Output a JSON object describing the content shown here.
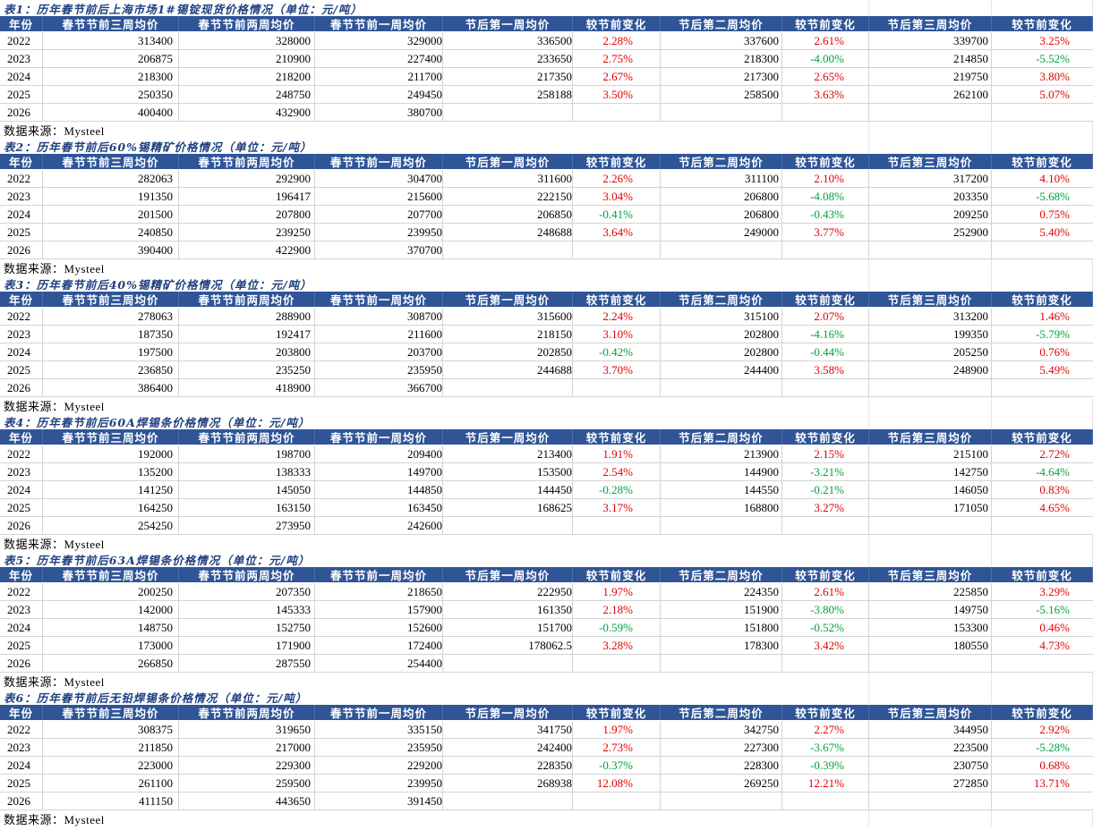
{
  "colors": {
    "header_bg": "#2f5597",
    "title_text": "#1f3f80",
    "increase": "#e00000",
    "decrease": "#00a040"
  },
  "headers": [
    "年份",
    "春节节前三周均价",
    "春节节前两周均价",
    "春节节前一周均价",
    "节后第一周均价",
    "较节前变化",
    "节后第二周均价",
    "较节前变化",
    "节后第三周均价",
    "较节前变化"
  ],
  "source_label": "数据来源：Mysteel",
  "tables": [
    {
      "title": "表1：历年春节前后上海市场1#锡锭现货价格情况（单位：元/吨）",
      "rows": [
        [
          "2022",
          "313400",
          "328000",
          "329000",
          "336500",
          "2.28%",
          "337600",
          "2.61%",
          "339700",
          "3.25%"
        ],
        [
          "2023",
          "206875",
          "210900",
          "227400",
          "233650",
          "2.75%",
          "218300",
          "-4.00%",
          "214850",
          "-5.52%"
        ],
        [
          "2024",
          "218300",
          "218200",
          "211700",
          "217350",
          "2.67%",
          "217300",
          "2.65%",
          "219750",
          "3.80%"
        ],
        [
          "2025",
          "250350",
          "248750",
          "249450",
          "258188",
          "3.50%",
          "258500",
          "3.63%",
          "262100",
          "5.07%"
        ],
        [
          "2026",
          "400400",
          "432900",
          "380700",
          "",
          "",
          "",
          "",
          "",
          ""
        ]
      ]
    },
    {
      "title": "表2：历年春节前后60%锡精矿价格情况（单位：元/吨）",
      "rows": [
        [
          "2022",
          "282063",
          "292900",
          "304700",
          "311600",
          "2.26%",
          "311100",
          "2.10%",
          "317200",
          "4.10%"
        ],
        [
          "2023",
          "191350",
          "196417",
          "215600",
          "222150",
          "3.04%",
          "206800",
          "-4.08%",
          "203350",
          "-5.68%"
        ],
        [
          "2024",
          "201500",
          "207800",
          "207700",
          "206850",
          "-0.41%",
          "206800",
          "-0.43%",
          "209250",
          "0.75%"
        ],
        [
          "2025",
          "240850",
          "239250",
          "239950",
          "248688",
          "3.64%",
          "249000",
          "3.77%",
          "252900",
          "5.40%"
        ],
        [
          "2026",
          "390400",
          "422900",
          "370700",
          "",
          "",
          "",
          "",
          "",
          ""
        ]
      ]
    },
    {
      "title": "表3：历年春节前后40%锡精矿价格情况（单位：元/吨）",
      "rows": [
        [
          "2022",
          "278063",
          "288900",
          "308700",
          "315600",
          "2.24%",
          "315100",
          "2.07%",
          "313200",
          "1.46%"
        ],
        [
          "2023",
          "187350",
          "192417",
          "211600",
          "218150",
          "3.10%",
          "202800",
          "-4.16%",
          "199350",
          "-5.79%"
        ],
        [
          "2024",
          "197500",
          "203800",
          "203700",
          "202850",
          "-0.42%",
          "202800",
          "-0.44%",
          "205250",
          "0.76%"
        ],
        [
          "2025",
          "236850",
          "235250",
          "235950",
          "244688",
          "3.70%",
          "244400",
          "3.58%",
          "248900",
          "5.49%"
        ],
        [
          "2026",
          "386400",
          "418900",
          "366700",
          "",
          "",
          "",
          "",
          "",
          ""
        ]
      ]
    },
    {
      "title": "表4：历年春节前后60A焊锡条价格情况（单位：元/吨）",
      "rows": [
        [
          "2022",
          "192000",
          "198700",
          "209400",
          "213400",
          "1.91%",
          "213900",
          "2.15%",
          "215100",
          "2.72%"
        ],
        [
          "2023",
          "135200",
          "138333",
          "149700",
          "153500",
          "2.54%",
          "144900",
          "-3.21%",
          "142750",
          "-4.64%"
        ],
        [
          "2024",
          "141250",
          "145050",
          "144850",
          "144450",
          "-0.28%",
          "144550",
          "-0.21%",
          "146050",
          "0.83%"
        ],
        [
          "2025",
          "164250",
          "163150",
          "163450",
          "168625",
          "3.17%",
          "168800",
          "3.27%",
          "171050",
          "4.65%"
        ],
        [
          "2026",
          "254250",
          "273950",
          "242600",
          "",
          "",
          "",
          "",
          "",
          ""
        ]
      ]
    },
    {
      "title": "表5：历年春节前后63A焊锡条价格情况（单位：元/吨）",
      "rows": [
        [
          "2022",
          "200250",
          "207350",
          "218650",
          "222950",
          "1.97%",
          "224350",
          "2.61%",
          "225850",
          "3.29%"
        ],
        [
          "2023",
          "142000",
          "145333",
          "157900",
          "161350",
          "2.18%",
          "151900",
          "-3.80%",
          "149750",
          "-5.16%"
        ],
        [
          "2024",
          "148750",
          "152750",
          "152600",
          "151700",
          "-0.59%",
          "151800",
          "-0.52%",
          "153300",
          "0.46%"
        ],
        [
          "2025",
          "173000",
          "171900",
          "172400",
          "178062.5",
          "3.28%",
          "178300",
          "3.42%",
          "180550",
          "4.73%"
        ],
        [
          "2026",
          "266850",
          "287550",
          "254400",
          "",
          "",
          "",
          "",
          "",
          ""
        ]
      ]
    },
    {
      "title": "表6：历年春节前后无铅焊锡条价格情况（单位：元/吨）",
      "rows": [
        [
          "2022",
          "308375",
          "319650",
          "335150",
          "341750",
          "1.97%",
          "342750",
          "2.27%",
          "344950",
          "2.92%"
        ],
        [
          "2023",
          "211850",
          "217000",
          "235950",
          "242400",
          "2.73%",
          "227300",
          "-3.67%",
          "223500",
          "-5.28%"
        ],
        [
          "2024",
          "223000",
          "229300",
          "229200",
          "228350",
          "-0.37%",
          "228300",
          "-0.39%",
          "230750",
          "0.68%"
        ],
        [
          "2025",
          "261100",
          "259500",
          "239950",
          "268938",
          "12.08%",
          "269250",
          "12.21%",
          "272850",
          "13.71%"
        ],
        [
          "2026",
          "411150",
          "443650",
          "391450",
          "",
          "",
          "",
          "",
          "",
          ""
        ]
      ]
    }
  ]
}
